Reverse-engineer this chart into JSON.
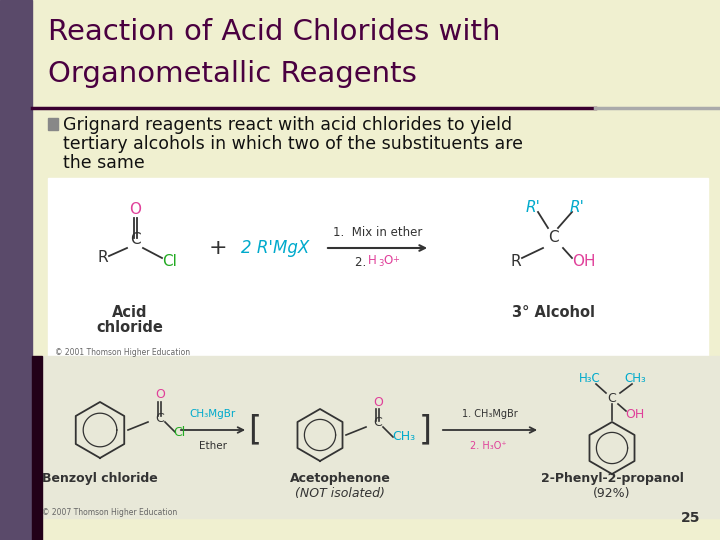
{
  "title_line1": "Reaction of Acid Chlorides with",
  "title_line2": "Organometallic Reagents",
  "title_color": "#4a0040",
  "title_fontsize": 21,
  "bg_color": "#f0f0d0",
  "left_bar_color": "#5a4a6a",
  "bullet_text_line1": "Grignard reagents react with acid chlorides to yield",
  "bullet_text_line2": "tertiary alcohols in which two of the substituents are",
  "bullet_text_line3": "the same",
  "bullet_fontsize": 12.5,
  "slide_number": "25",
  "divider_dark": "#3a0030",
  "divider_light": "#aaaaaa",
  "upper_bg": "#ffffff",
  "lower_bg": "#e8e8d8",
  "color_pink": "#e0409a",
  "color_cyan": "#00aacc",
  "color_green": "#22aa22",
  "color_dark": "#333333",
  "color_gray": "#666666"
}
